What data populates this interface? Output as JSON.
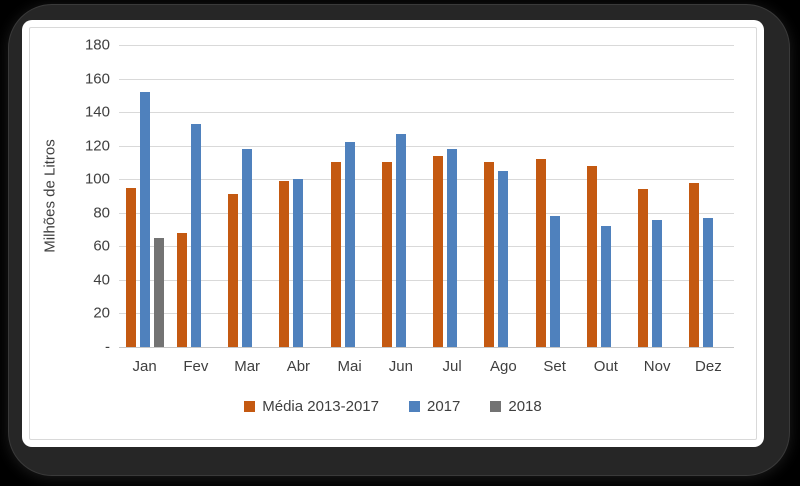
{
  "window": {
    "background_color": "#000000",
    "frame_color": "#262626",
    "panel_color": "#ffffff"
  },
  "chart_data": {
    "type": "bar",
    "title": "",
    "ylabel": "Milhões de Litros",
    "xlabel": "",
    "categories": [
      "Jan",
      "Fev",
      "Mar",
      "Abr",
      "Mai",
      "Jun",
      "Jul",
      "Ago",
      "Set",
      "Out",
      "Nov",
      "Dez"
    ],
    "series": [
      {
        "name": "Média 2013-2017",
        "color": "#C45911",
        "values": [
          95,
          68,
          91,
          99,
          110,
          110,
          114,
          110,
          112,
          108,
          94,
          98
        ]
      },
      {
        "name": "2017",
        "color": "#4F81BD",
        "values": [
          152,
          133,
          118,
          100,
          122,
          127,
          118,
          105,
          78,
          72,
          76,
          77
        ]
      },
      {
        "name": "2018",
        "color": "#737373",
        "values": [
          65,
          null,
          null,
          null,
          null,
          null,
          null,
          null,
          null,
          null,
          null,
          null
        ]
      }
    ],
    "ylim": [
      0,
      180
    ],
    "y_tick_step": 20,
    "y_tick_labels_bottom_to_top": [
      "-",
      "20",
      "40",
      "60",
      "80",
      "100",
      "120",
      "140",
      "160",
      "180"
    ],
    "grid": true,
    "legend_position": "bottom",
    "gridline_color": "#d9d9d9",
    "axis_text_color": "#3f3f3f"
  }
}
